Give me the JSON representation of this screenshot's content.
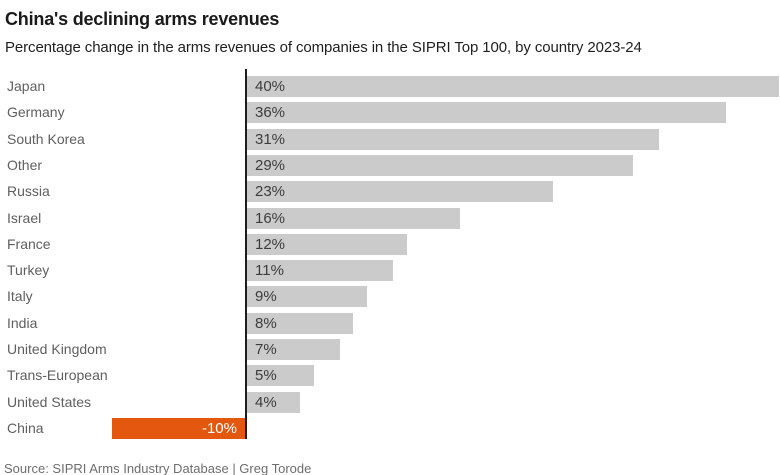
{
  "header": {
    "title": "China's declining arms revenues",
    "subtitle": "Percentage change in the arms revenues of companies in the SIPRI Top 100, by country 2023-24"
  },
  "chart_data": {
    "type": "bar",
    "orientation": "horizontal",
    "title": "China's declining arms revenues",
    "subtitle": "Percentage change in the arms revenues of companies in the SIPRI Top 100, by country 2023-24",
    "categories": [
      "Japan",
      "Germany",
      "South Korea",
      "Other",
      "Russia",
      "Israel",
      "France",
      "Turkey",
      "Italy",
      "India",
      "United Kingdom",
      "Trans-European",
      "United States",
      "China"
    ],
    "values": [
      40,
      36,
      31,
      29,
      23,
      16,
      12,
      11,
      9,
      8,
      7,
      5,
      4,
      -10
    ],
    "value_labels": [
      "40%",
      "36%",
      "31%",
      "29%",
      "23%",
      "16%",
      "12%",
      "11%",
      "9%",
      "8%",
      "7%",
      "5%",
      "4%",
      "-10%"
    ],
    "xlabel": "",
    "ylabel": "",
    "xlim": [
      -10,
      40
    ],
    "grid": false,
    "legend": null,
    "bar_color": "#cbcbcb",
    "negative_bar_color": "#e4570e",
    "axis_color": "#1d1d1d",
    "value_label_color_positive": "#3c3c3c",
    "value_label_color_negative": "#ffffff"
  },
  "footer": {
    "source": "Source: SIPRI Arms Industry Database | Greg Torode"
  }
}
